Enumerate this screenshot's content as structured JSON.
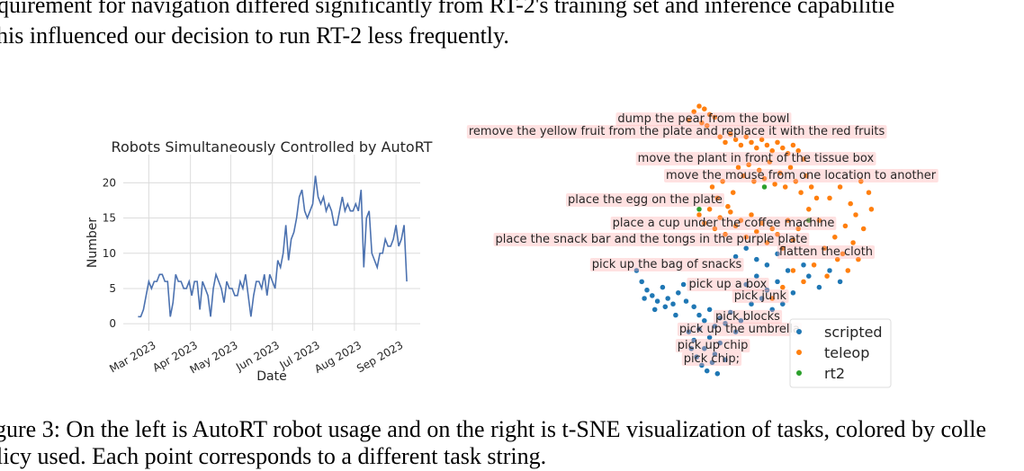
{
  "text": [
    "quirement for navigation differed significantly from RT-2's training set and inference capabilitie",
    "his influenced our decision to run RT-2 less frequently."
  ],
  "caption": [
    "gure 3: On the left is AutoRT robot usage and on the right is t-SNE visualization of tasks, colored by colle",
    "licy used. Each point corresponds to a different task string."
  ],
  "chart_data": [
    {
      "type": "line",
      "title": "Robots Simultaneously Controlled by AutoRT",
      "xlabel": "Date",
      "ylabel": "Number",
      "color": "#4c72b0",
      "grid": true,
      "x": [
        -8,
        -6,
        -4,
        -2,
        0,
        2,
        4,
        6,
        8,
        10,
        12,
        14,
        16,
        18,
        20,
        22,
        24,
        26,
        28,
        30,
        32,
        34,
        36,
        38,
        40,
        42,
        44,
        46,
        48,
        50,
        52,
        54,
        56,
        58,
        60,
        62,
        64,
        66,
        68,
        70,
        72,
        74,
        76,
        78,
        80,
        82,
        84,
        86,
        88,
        90,
        92,
        94,
        96,
        98,
        100,
        102,
        104,
        106,
        108,
        110,
        112,
        114,
        116,
        118,
        120,
        122,
        124,
        126,
        128,
        130,
        132,
        134,
        136,
        138,
        140,
        142,
        144,
        146,
        148,
        150,
        152,
        154,
        156,
        158,
        160,
        162,
        164,
        166,
        168,
        170,
        172,
        174,
        176,
        178,
        180,
        182,
        184,
        186,
        188,
        190,
        192
      ],
      "values": [
        1,
        1,
        2,
        4,
        6,
        5,
        6,
        6,
        7,
        7,
        6,
        6,
        1,
        3,
        7,
        6,
        6,
        5,
        5,
        6,
        4,
        6,
        6,
        2,
        6,
        5,
        4,
        1,
        5,
        7,
        6,
        5,
        3,
        6,
        5,
        5,
        4,
        4,
        6,
        5,
        7,
        4,
        1,
        4,
        6,
        6,
        5,
        7,
        4,
        7,
        6,
        5,
        9,
        8,
        10,
        14,
        9,
        12,
        13,
        15,
        18,
        19,
        16,
        15,
        16,
        17,
        21,
        18,
        17,
        18,
        16,
        17,
        16,
        14,
        14,
        16,
        18,
        16,
        17,
        16,
        16,
        17,
        16,
        19,
        8,
        15,
        16,
        10,
        9,
        8,
        10,
        10,
        12,
        11,
        11,
        12,
        14,
        11,
        12,
        14,
        6
      ],
      "xlim": [
        -19,
        202
      ],
      "xticks": [
        {
          "value": 0,
          "label": "Mar 2023"
        },
        {
          "value": 31,
          "label": "Apr 2023"
        },
        {
          "value": 61,
          "label": "May 2023"
        },
        {
          "value": 92,
          "label": "Jun 2023"
        },
        {
          "value": 122,
          "label": "Jul 2023"
        },
        {
          "value": 153,
          "label": "Aug 2023"
        },
        {
          "value": 184,
          "label": "Sep 2023"
        }
      ],
      "ylim": [
        -1,
        24
      ],
      "yticks": [
        0,
        5,
        10,
        15,
        20
      ]
    },
    {
      "type": "scatter",
      "xlim": [
        0,
        100
      ],
      "ylim": [
        0,
        100
      ],
      "legend": "lower right",
      "series": [
        {
          "name": "scripted",
          "color": "#1f77b4",
          "x": [
            6,
            8,
            10,
            12,
            14,
            16,
            18,
            20,
            22,
            24,
            9,
            13,
            17,
            21,
            25,
            28,
            30,
            32,
            34,
            36,
            38,
            40,
            42,
            44,
            46,
            26,
            28,
            30,
            32,
            34,
            36,
            38,
            40,
            27,
            29,
            31,
            33,
            35,
            37,
            48,
            52,
            56,
            60,
            64,
            50,
            54,
            58,
            62,
            66,
            44,
            48,
            52,
            56,
            60,
            72,
            76,
            80,
            84,
            70
          ],
          "values": [
            40,
            36,
            33,
            31,
            29,
            34,
            30,
            28,
            32,
            35,
            30,
            26,
            27,
            24,
            29,
            27,
            24,
            22,
            26,
            20,
            23,
            21,
            25,
            18,
            22,
            18,
            15,
            19,
            12,
            16,
            10,
            14,
            8,
            12,
            9,
            6,
            4,
            7,
            3,
            35,
            38,
            33,
            36,
            40,
            28,
            30,
            26,
            28,
            32,
            45,
            48,
            44,
            42,
            46,
            38,
            34,
            40,
            36,
            42
          ]
        },
        {
          "name": "teleop",
          "color": "#ff7f0e",
          "x": [
            28,
            30,
            32,
            34,
            36,
            31,
            33,
            26,
            38,
            40,
            42,
            44,
            46,
            48,
            50,
            52,
            54,
            56,
            58,
            60,
            62,
            64,
            66,
            68,
            70,
            45,
            47,
            49,
            51,
            53,
            55,
            57,
            59,
            61,
            63,
            65,
            67,
            69,
            71,
            73,
            75,
            35,
            37,
            39,
            41,
            43,
            30,
            32,
            34,
            36,
            38,
            40,
            42,
            44,
            46,
            48,
            50,
            52,
            54,
            56,
            58,
            60,
            62,
            64,
            66,
            68,
            72,
            76,
            80,
            84,
            88,
            92,
            95,
            90,
            86,
            82,
            78,
            85,
            89,
            93,
            96,
            91,
            87,
            83,
            79,
            74,
            70,
            66,
            62,
            58
          ],
          "values": [
            97,
            99,
            98,
            96,
            95,
            93,
            92,
            94,
            88,
            86,
            89,
            87,
            85,
            88,
            86,
            84,
            87,
            85,
            83,
            86,
            84,
            82,
            85,
            83,
            80,
            77,
            74,
            78,
            72,
            76,
            73,
            79,
            71,
            75,
            70,
            77,
            72,
            68,
            74,
            70,
            66,
            70,
            66,
            72,
            63,
            68,
            60,
            57,
            62,
            55,
            59,
            53,
            61,
            56,
            58,
            52,
            60,
            54,
            57,
            50,
            55,
            53,
            48,
            58,
            51,
            55,
            62,
            58,
            66,
            70,
            64,
            72,
            68,
            60,
            56,
            52,
            48,
            46,
            50,
            55,
            62,
            44,
            40,
            44,
            38,
            42,
            36,
            40,
            34,
            30
          ]
        },
        {
          "name": "rt2",
          "color": "#2ca02c",
          "x": [
            55,
            30,
            72
          ],
          "values": [
            70,
            62,
            58
          ]
        }
      ],
      "annotations": [
        {
          "text": "dump the pear from the bowl",
          "x": 31.7,
          "y": 94.8
        },
        {
          "text": "remove the yellow fruit from the plate and replace it with the red fruits",
          "x": 21.4,
          "y": 90.3
        },
        {
          "text": "move the plant in front of the tissue box",
          "x": 51.7,
          "y": 80.6
        },
        {
          "text": "move the mouse from one location to another",
          "x": 69,
          "y": 74.5
        },
        {
          "text": "place the egg on the plate",
          "x": 9.3,
          "y": 65.8
        },
        {
          "text": "place a cup under the coffee machine",
          "x": 39.3,
          "y": 57.4
        },
        {
          "text": "place the snack bar and the tongs in the purple plate",
          "x": 11.7,
          "y": 51.6
        },
        {
          "text": "flatten the cloth",
          "x": 78.6,
          "y": 47.1
        },
        {
          "text": "pick up the bag of snacks",
          "x": 17.6,
          "y": 42.6
        },
        {
          "text": "pick up a box",
          "x": 41,
          "y": 35.5
        },
        {
          "text": "pick junk",
          "x": 53.4,
          "y": 31.3
        },
        {
          "text": "pick blocks",
          "x": 48.6,
          "y": 23.9
        },
        {
          "text": "pick up the umbrella",
          "x": 45.5,
          "y": 19.4
        },
        {
          "text": "pick up chip",
          "x": 35.2,
          "y": 13.5
        },
        {
          "text": "pick chip;",
          "x": 34.8,
          "y": 8.7
        }
      ]
    }
  ]
}
